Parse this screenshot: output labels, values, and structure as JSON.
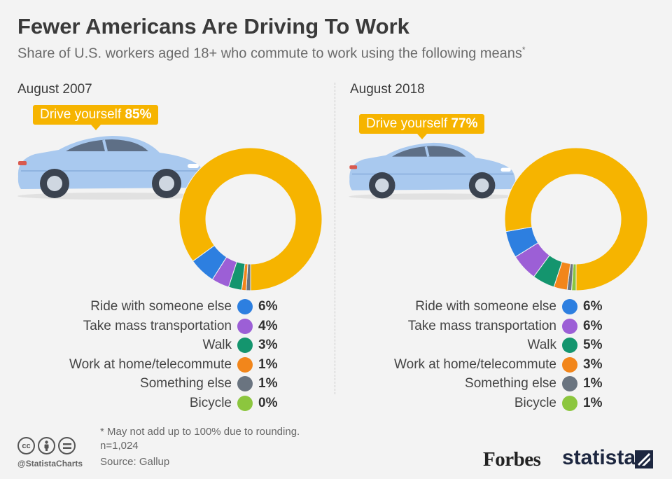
{
  "title": "Fewer Americans Are Driving To Work",
  "subtitle": "Share of U.S. workers aged 18+ who commute to work using the following means",
  "subtitle_mark": "*",
  "colors": {
    "drive": "#f6b400",
    "ride": "#2d7fe0",
    "mass": "#9c5fd6",
    "walk": "#14956e",
    "home": "#f2861b",
    "else": "#6a7480",
    "bicycle": "#8cc63e"
  },
  "chart_data": [
    {
      "type": "pie",
      "period": "August 2007",
      "callout": {
        "label": "Drive yourself",
        "value_text": "85%"
      },
      "slices": [
        {
          "name": "Drive yourself",
          "value": 85,
          "value_text": "85%",
          "color": "#f6b400"
        },
        {
          "name": "Ride with someone else",
          "value": 6,
          "value_text": "6%",
          "color": "#2d7fe0"
        },
        {
          "name": "Take mass transportation",
          "value": 4,
          "value_text": "4%",
          "color": "#9c5fd6"
        },
        {
          "name": "Walk",
          "value": 3,
          "value_text": "3%",
          "color": "#14956e"
        },
        {
          "name": "Work at home/telecommute",
          "value": 1,
          "value_text": "1%",
          "color": "#f2861b"
        },
        {
          "name": "Something else",
          "value": 1,
          "value_text": "1%",
          "color": "#6a7480"
        },
        {
          "name": "Bicycle",
          "value": 0,
          "value_text": "0%",
          "color": "#8cc63e"
        }
      ]
    },
    {
      "type": "pie",
      "period": "August 2018",
      "callout": {
        "label": "Drive yourself",
        "value_text": "77%"
      },
      "slices": [
        {
          "name": "Drive yourself",
          "value": 77,
          "value_text": "77%",
          "color": "#f6b400"
        },
        {
          "name": "Ride with someone else",
          "value": 6,
          "value_text": "6%",
          "color": "#2d7fe0"
        },
        {
          "name": "Take mass transportation",
          "value": 6,
          "value_text": "6%",
          "color": "#9c5fd6"
        },
        {
          "name": "Walk",
          "value": 5,
          "value_text": "5%",
          "color": "#14956e"
        },
        {
          "name": "Work at home/telecommute",
          "value": 3,
          "value_text": "3%",
          "color": "#f2861b"
        },
        {
          "name": "Something else",
          "value": 1,
          "value_text": "1%",
          "color": "#6a7480"
        },
        {
          "name": "Bicycle",
          "value": 1,
          "value_text": "1%",
          "color": "#8cc63e"
        }
      ]
    }
  ],
  "footer": {
    "note": "* May not add up to 100% due to rounding.",
    "sample": "n=1,024",
    "source": "Source: Gallup",
    "handle": "@StatistaCharts",
    "brand_forbes": "Forbes",
    "brand_statista": "statista",
    "cc_icons": [
      "cc-icon",
      "attribution-icon",
      "no-derivatives-icon"
    ]
  }
}
